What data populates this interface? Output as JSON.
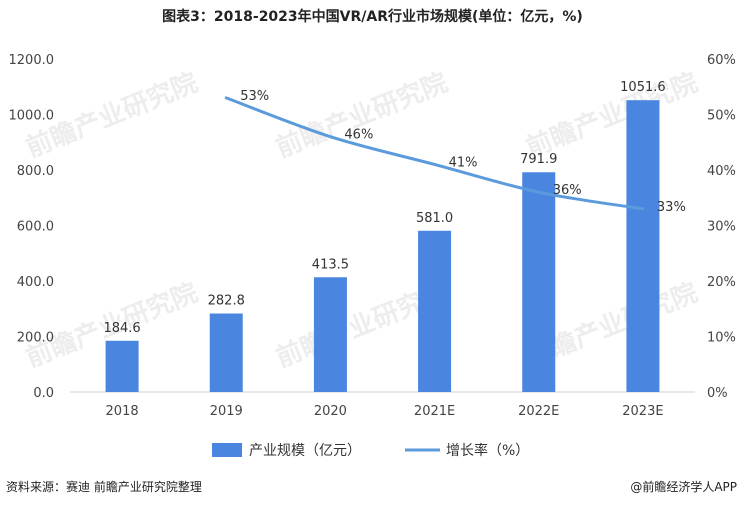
{
  "title": "图表3：2018-2023年中国VR/AR行业市场规模(单位：亿元，%)",
  "watermark": "前瞻产业研究院",
  "footer": {
    "source": "资料来源：赛迪 前瞻产业研究院整理",
    "brand": "@前瞻经济学人APP"
  },
  "chart_data": {
    "type": "bar",
    "categories": [
      "2018",
      "2019",
      "2020",
      "2021E",
      "2022E",
      "2023E"
    ],
    "series": [
      {
        "name": "产业规模（亿元）",
        "type": "bar",
        "axis": "left",
        "values": [
          184.6,
          282.8,
          413.5,
          581.0,
          791.9,
          1051.6
        ],
        "labels": [
          "184.6",
          "282.8",
          "413.5",
          "581.0",
          "791.9",
          "1051.6"
        ],
        "color": "#4a86e0"
      },
      {
        "name": "增长率（%）",
        "type": "line",
        "axis": "right",
        "values": [
          null,
          53,
          46,
          41,
          36,
          33
        ],
        "labels": [
          "",
          "53%",
          "46%",
          "41%",
          "36%",
          "33%"
        ],
        "color": "#5b9bdc"
      }
    ],
    "y_left": {
      "min": 0,
      "max": 1200,
      "ticks": [
        "0.0",
        "200.0",
        "400.0",
        "600.0",
        "800.0",
        "1000.0",
        "1200.0"
      ]
    },
    "y_right": {
      "min": 0,
      "max": 60,
      "ticks": [
        "0%",
        "10%",
        "20%",
        "30%",
        "40%",
        "50%",
        "60%"
      ]
    },
    "legend_position": "bottom",
    "grid": false
  }
}
